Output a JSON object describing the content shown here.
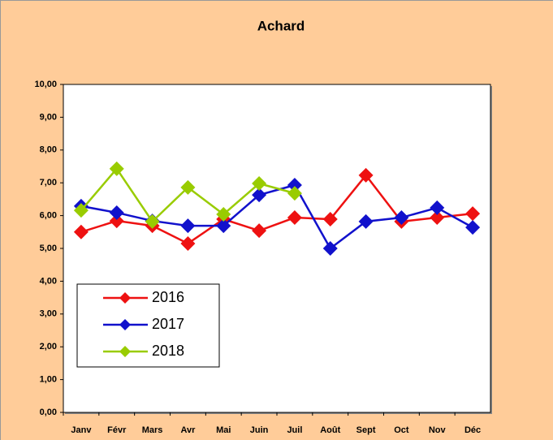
{
  "chart_data": {
    "type": "line",
    "title": "Achard",
    "categories": [
      "Janv",
      "Févr",
      "Mars",
      "Avr",
      "Mai",
      "Juin",
      "Juil",
      "Août",
      "Sept",
      "Oct",
      "Nov",
      "Déc"
    ],
    "series": [
      {
        "name": "2016",
        "color": "#ee1111",
        "values": [
          5.5,
          5.84,
          5.69,
          5.15,
          5.89,
          5.54,
          5.94,
          5.89,
          7.23,
          5.82,
          5.94,
          6.06
        ]
      },
      {
        "name": "2017",
        "color": "#1111cc",
        "values": [
          6.29,
          6.09,
          5.84,
          5.69,
          5.69,
          6.63,
          6.93,
          5.0,
          5.82,
          5.94,
          6.24,
          5.64
        ]
      },
      {
        "name": "2018",
        "color": "#99cc00",
        "values": [
          6.16,
          7.43,
          5.82,
          6.86,
          6.04,
          6.98,
          6.68,
          null,
          null,
          null,
          null,
          null
        ]
      }
    ],
    "ylim": [
      0,
      10
    ],
    "yticks": [
      {
        "value": 0,
        "label": "0,00"
      },
      {
        "value": 1,
        "label": "1,00"
      },
      {
        "value": 2,
        "label": "2,00"
      },
      {
        "value": 3,
        "label": "3,00"
      },
      {
        "value": 4,
        "label": "4,00"
      },
      {
        "value": 5,
        "label": "5,00"
      },
      {
        "value": 6,
        "label": "6,00"
      },
      {
        "value": 7,
        "label": "7,00"
      },
      {
        "value": 8,
        "label": "8,00"
      },
      {
        "value": 9,
        "label": "9,00"
      },
      {
        "value": 10,
        "label": "10,00"
      }
    ]
  }
}
